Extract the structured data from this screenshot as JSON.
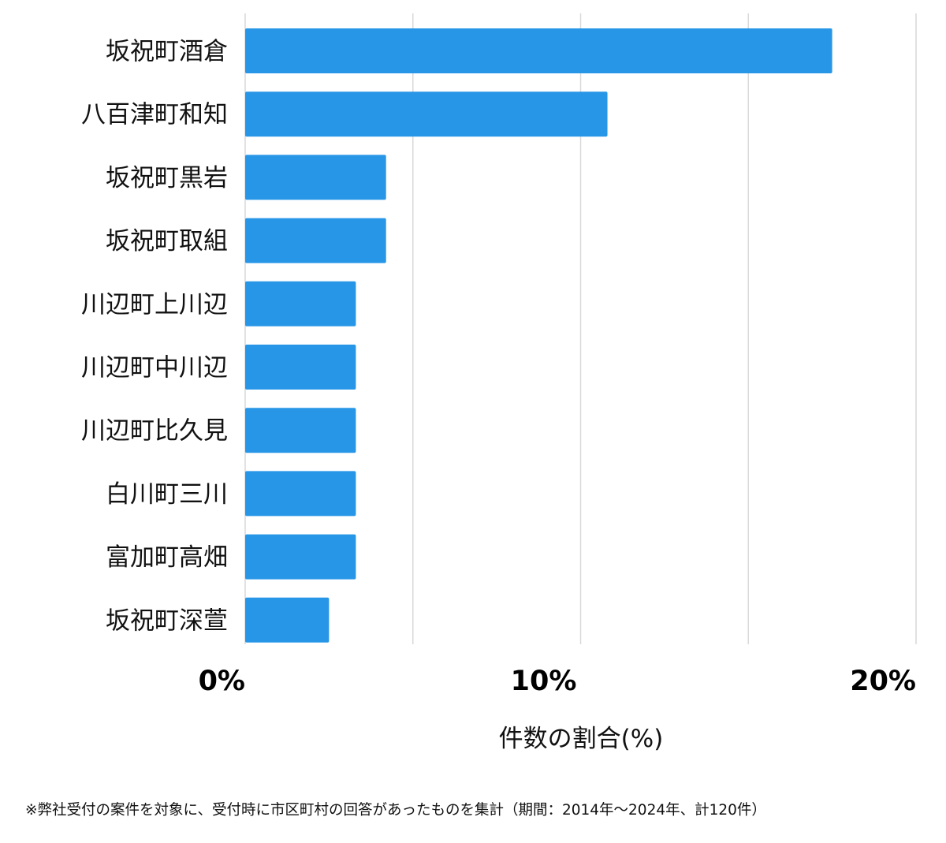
{
  "chart_data": {
    "type": "bar",
    "orientation": "horizontal",
    "categories": [
      "坂祝町酒倉",
      "八百津町和知",
      "坂祝町黒岩",
      "坂祝町取組",
      "川辺町上川辺",
      "川辺町中川辺",
      "川辺町比久見",
      "白川町三川",
      "富加町高畑",
      "坂祝町深萱"
    ],
    "values": [
      17.5,
      10.8,
      4.2,
      4.2,
      3.3,
      3.3,
      3.3,
      3.3,
      3.3,
      2.5
    ],
    "xlim": [
      0,
      20
    ],
    "xticks": [
      0,
      10,
      20
    ],
    "xtick_labels": [
      "0%",
      "10%",
      "20%"
    ],
    "gridlines": [
      0,
      5,
      10,
      15,
      20
    ],
    "grid": true,
    "xlabel": "件数の割合(%)",
    "ylabel": "",
    "title": "",
    "bar_color": "#2896e6",
    "grid_color": "#d9d9d9"
  },
  "footnote": "※弊社受付の案件を対象に、受付時に市区町村の回答があったものを集計（期間：2014年～2024年、計120件）"
}
